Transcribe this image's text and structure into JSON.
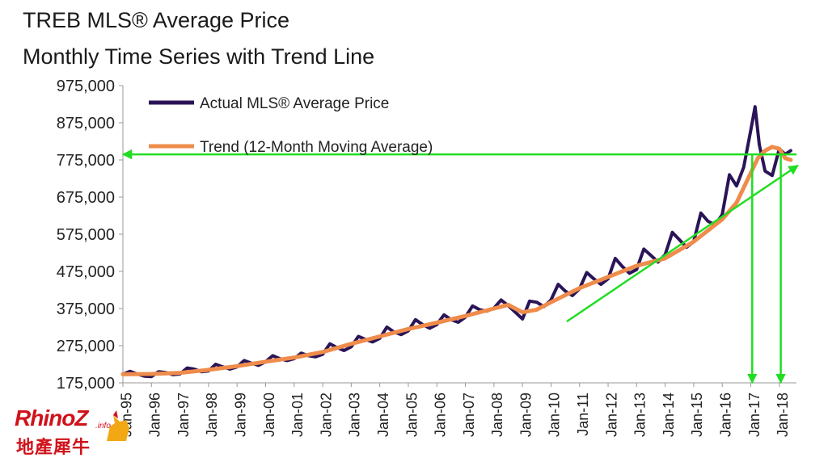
{
  "title": "TREB MLS® Average Price",
  "subtitle": "Monthly Time Series with Trend Line",
  "logo": {
    "text_en": "RhinoZ",
    "text_info": ".info",
    "text_cn": "地產犀牛"
  },
  "colors": {
    "actual": "#2b1457",
    "trend": "#ef8c4b",
    "annotation": "#22dd22",
    "axis": "#999999"
  },
  "chart_data": {
    "type": "line",
    "title": "TREB MLS® Average Price",
    "subtitle": "Monthly Time Series with Trend Line",
    "ylim": [
      175000,
      975000
    ],
    "yticks": [
      975000,
      875000,
      775000,
      675000,
      575000,
      475000,
      375000,
      275000,
      175000
    ],
    "ytick_labels": [
      "975,000",
      "875,000",
      "775,000",
      "675,000",
      "575,000",
      "475,000",
      "375,000",
      "275,000",
      "175,000"
    ],
    "xlim": [
      1995.0,
      2018.6
    ],
    "xticks": [
      1995,
      1996,
      1997,
      1998,
      1999,
      2000,
      2001,
      2002,
      2003,
      2004,
      2005,
      2006,
      2007,
      2008,
      2009,
      2010,
      2011,
      2012,
      2013,
      2014,
      2015,
      2016,
      2017,
      2018
    ],
    "xtick_labels": [
      "Jan-95",
      "Jan-96",
      "Jan-97",
      "Jan-98",
      "Jan-99",
      "Jan-00",
      "Jan-01",
      "Jan-02",
      "Jan-03",
      "Jan-04",
      "Jan-05",
      "Jan-06",
      "Jan-07",
      "Jan-08",
      "Jan-09",
      "Jan-10",
      "Jan-11",
      "Jan-12",
      "Jan-13",
      "Jan-14",
      "Jan-15",
      "Jan-16",
      "Jan-17",
      "Jan-18"
    ],
    "legend": {
      "position": "top-left"
    },
    "series": [
      {
        "name": "Actual MLS® Average Price",
        "x": [
          1995.0,
          1995.25,
          1995.5,
          1995.75,
          1996.0,
          1996.25,
          1996.5,
          1996.75,
          1997.0,
          1997.25,
          1997.5,
          1997.75,
          1998.0,
          1998.25,
          1998.5,
          1998.75,
          1999.0,
          1999.25,
          1999.5,
          1999.75,
          2000.0,
          2000.25,
          2000.5,
          2000.75,
          2001.0,
          2001.25,
          2001.5,
          2001.75,
          2002.0,
          2002.25,
          2002.5,
          2002.75,
          2003.0,
          2003.25,
          2003.5,
          2003.75,
          2004.0,
          2004.25,
          2004.5,
          2004.75,
          2005.0,
          2005.25,
          2005.5,
          2005.75,
          2006.0,
          2006.25,
          2006.5,
          2006.75,
          2007.0,
          2007.25,
          2007.5,
          2007.75,
          2008.0,
          2008.25,
          2008.5,
          2008.75,
          2009.0,
          2009.25,
          2009.5,
          2009.75,
          2010.0,
          2010.25,
          2010.5,
          2010.75,
          2011.0,
          2011.25,
          2011.5,
          2011.75,
          2012.0,
          2012.25,
          2012.5,
          2012.75,
          2013.0,
          2013.25,
          2013.5,
          2013.75,
          2014.0,
          2014.25,
          2014.5,
          2014.75,
          2015.0,
          2015.25,
          2015.5,
          2015.75,
          2016.0,
          2016.25,
          2016.5,
          2016.75,
          2017.0,
          2017.15,
          2017.3,
          2017.5,
          2017.75,
          2018.0,
          2018.2,
          2018.4
        ],
        "values": [
          198000,
          206000,
          199000,
          193000,
          192000,
          205000,
          203000,
          197000,
          199000,
          215000,
          212000,
          205000,
          207000,
          225000,
          218000,
          212000,
          218000,
          235000,
          228000,
          222000,
          232000,
          248000,
          240000,
          235000,
          240000,
          255000,
          248000,
          245000,
          252000,
          280000,
          270000,
          262000,
          272000,
          300000,
          292000,
          285000,
          295000,
          325000,
          312000,
          305000,
          315000,
          345000,
          332000,
          322000,
          332000,
          358000,
          345000,
          338000,
          352000,
          382000,
          372000,
          368000,
          376000,
          398000,
          383000,
          365000,
          347000,
          395000,
          392000,
          380000,
          398000,
          440000,
          422000,
          410000,
          428000,
          472000,
          455000,
          440000,
          455000,
          510000,
          488000,
          470000,
          480000,
          535000,
          518000,
          500000,
          520000,
          580000,
          560000,
          540000,
          555000,
          632000,
          610000,
          600000,
          628000,
          735000,
          705000,
          755000,
          855000,
          918000,
          815000,
          745000,
          733000,
          805000,
          790000,
          800000
        ]
      },
      {
        "name": "Trend (12-Month Moving Average)",
        "x": [
          1995.0,
          1996.0,
          1997.0,
          1998.0,
          1999.0,
          2000.0,
          2001.0,
          2002.0,
          2003.0,
          2004.0,
          2005.0,
          2006.0,
          2007.0,
          2008.0,
          2008.5,
          2009.0,
          2009.5,
          2010.0,
          2011.0,
          2012.0,
          2013.0,
          2014.0,
          2015.0,
          2016.0,
          2016.5,
          2017.0,
          2017.25,
          2017.5,
          2017.75,
          2018.0,
          2018.2,
          2018.4
        ],
        "values": [
          198000,
          199000,
          202000,
          210000,
          220000,
          232000,
          243000,
          258000,
          280000,
          300000,
          320000,
          337000,
          355000,
          375000,
          385000,
          365000,
          372000,
          392000,
          430000,
          460000,
          490000,
          510000,
          555000,
          615000,
          660000,
          740000,
          780000,
          800000,
          810000,
          805000,
          780000,
          775000
        ]
      }
    ],
    "annotations": [
      {
        "type": "horizontal-arrow",
        "y": 790000,
        "x_from": 2018.6,
        "x_to": 1995.0
      },
      {
        "type": "diagonal-trend-arrow",
        "from": {
          "x": 2010.55,
          "y": 340000
        },
        "to": {
          "x": 2018.65,
          "y": 760000
        }
      },
      {
        "type": "vertical-arrow",
        "x": 2017.05,
        "y_from": 790000,
        "y_to": 175000
      },
      {
        "type": "vertical-arrow",
        "x": 2018.05,
        "y_from": 790000,
        "y_to": 175000
      }
    ]
  }
}
